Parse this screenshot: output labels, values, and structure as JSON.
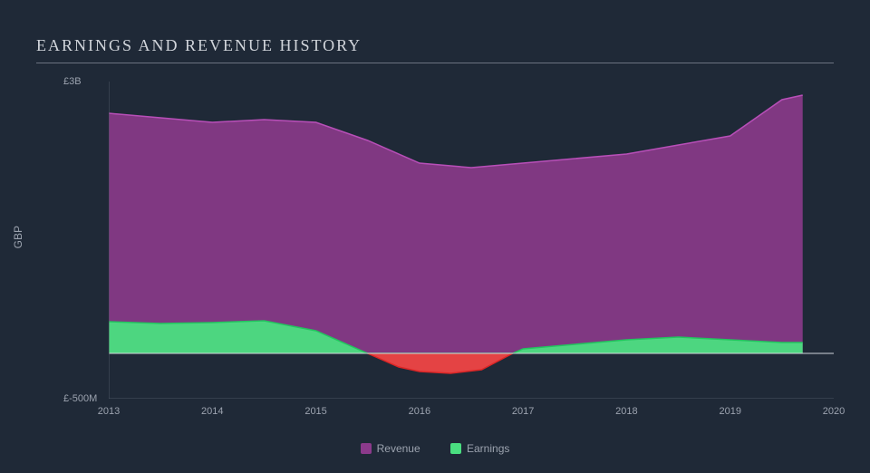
{
  "chart": {
    "type": "area",
    "title": "EARNINGS AND REVENUE HISTORY",
    "title_fontsize": 18,
    "title_color": "#d1d5db",
    "background_color": "#1f2937",
    "grid_color": "#4b5563",
    "axis_label_color": "#9ca3af",
    "tick_fontsize": 11,
    "y_label": "GBP",
    "y_ticks": [
      {
        "value": 3000,
        "label": "£3B"
      },
      {
        "value": -500,
        "label": "£-500M"
      }
    ],
    "x_ticks": [
      "2013",
      "2014",
      "2015",
      "2016",
      "2017",
      "2018",
      "2019",
      "2020"
    ],
    "xlim": [
      2013,
      2020
    ],
    "ylim": [
      -500,
      3000
    ],
    "series": {
      "revenue": {
        "label": "Revenue",
        "color": "#8b3a8b",
        "stroke": "#b84fb8",
        "data": [
          {
            "x": 2013.0,
            "y": 2650
          },
          {
            "x": 2013.5,
            "y": 2600
          },
          {
            "x": 2014.0,
            "y": 2550
          },
          {
            "x": 2014.5,
            "y": 2580
          },
          {
            "x": 2015.0,
            "y": 2550
          },
          {
            "x": 2015.5,
            "y": 2350
          },
          {
            "x": 2016.0,
            "y": 2100
          },
          {
            "x": 2016.5,
            "y": 2050
          },
          {
            "x": 2017.0,
            "y": 2100
          },
          {
            "x": 2017.5,
            "y": 2150
          },
          {
            "x": 2018.0,
            "y": 2200
          },
          {
            "x": 2018.5,
            "y": 2300
          },
          {
            "x": 2019.0,
            "y": 2400
          },
          {
            "x": 2019.5,
            "y": 2800
          },
          {
            "x": 2019.7,
            "y": 2850
          }
        ]
      },
      "earnings_pos": {
        "label": "Earnings",
        "color": "#4ade80",
        "stroke": "#22c55e",
        "data": [
          {
            "x": 2013.0,
            "y": 350
          },
          {
            "x": 2013.5,
            "y": 330
          },
          {
            "x": 2014.0,
            "y": 340
          },
          {
            "x": 2014.5,
            "y": 360
          },
          {
            "x": 2015.0,
            "y": 250
          },
          {
            "x": 2015.3,
            "y": 100
          },
          {
            "x": 2015.5,
            "y": 0
          },
          {
            "x": 2016.9,
            "y": 0
          },
          {
            "x": 2017.0,
            "y": 50
          },
          {
            "x": 2017.5,
            "y": 100
          },
          {
            "x": 2018.0,
            "y": 150
          },
          {
            "x": 2018.5,
            "y": 180
          },
          {
            "x": 2019.0,
            "y": 150
          },
          {
            "x": 2019.5,
            "y": 120
          },
          {
            "x": 2019.7,
            "y": 120
          }
        ]
      },
      "earnings_neg": {
        "color": "#ef4444",
        "stroke": "#dc2626",
        "data": [
          {
            "x": 2015.5,
            "y": 0
          },
          {
            "x": 2015.8,
            "y": -150
          },
          {
            "x": 2016.0,
            "y": -200
          },
          {
            "x": 2016.3,
            "y": -220
          },
          {
            "x": 2016.6,
            "y": -180
          },
          {
            "x": 2016.9,
            "y": 0
          }
        ]
      }
    },
    "legend": [
      {
        "label": "Revenue",
        "color": "#8b3a8b"
      },
      {
        "label": "Earnings",
        "color": "#4ade80"
      }
    ]
  }
}
